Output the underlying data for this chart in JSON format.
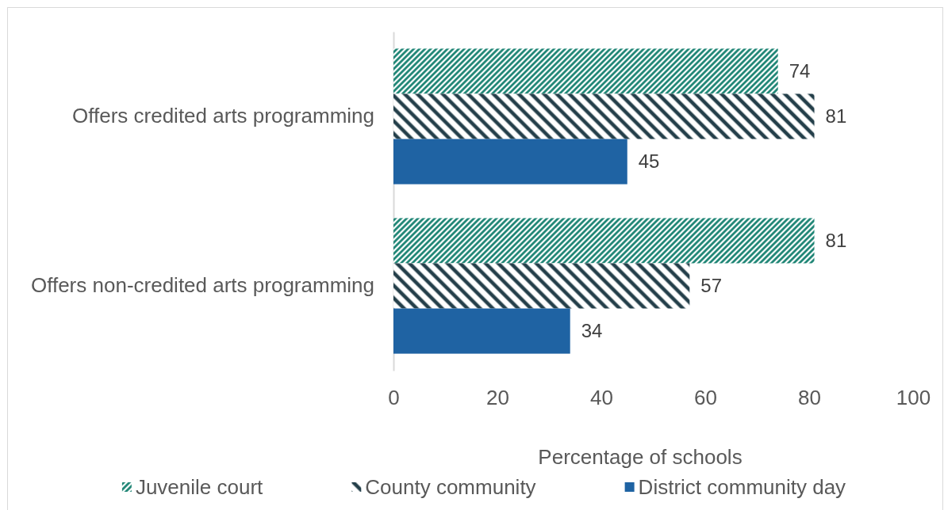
{
  "chart_data": {
    "type": "bar",
    "orientation": "horizontal",
    "categories": [
      "Offers credited arts programming",
      "Offers non-credited arts programming"
    ],
    "series": [
      {
        "name": "Juvenile court",
        "color": "#0e7c6b",
        "values": [
          74,
          81
        ]
      },
      {
        "name": "County community",
        "color": "#243f4a",
        "values": [
          81,
          57
        ]
      },
      {
        "name": "District community day",
        "color": "#1f63a3",
        "values": [
          45,
          34
        ]
      }
    ],
    "xlabel": "Percentage of schools",
    "xlim": [
      0,
      100
    ],
    "xticks": [
      0,
      20,
      40,
      60,
      80,
      100
    ],
    "data_labels": true,
    "grid": false,
    "legend": "bottom"
  }
}
